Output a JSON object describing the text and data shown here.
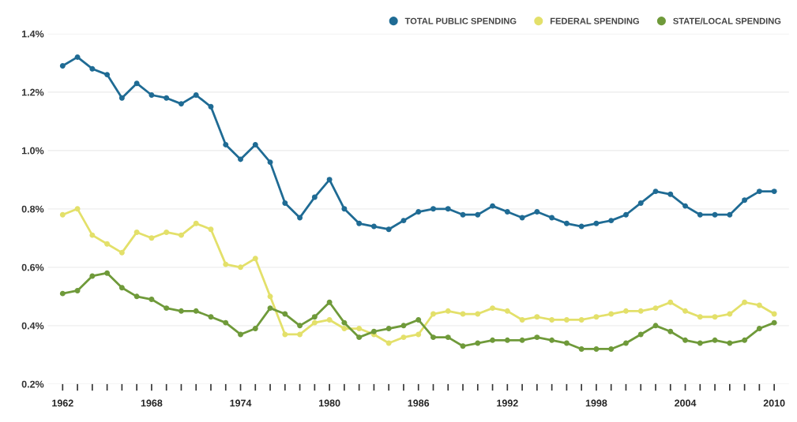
{
  "chart_data": {
    "type": "line",
    "x": [
      1962,
      1963,
      1964,
      1965,
      1966,
      1967,
      1968,
      1969,
      1970,
      1971,
      1972,
      1973,
      1974,
      1975,
      1976,
      1977,
      1978,
      1979,
      1980,
      1981,
      1982,
      1983,
      1984,
      1985,
      1986,
      1987,
      1988,
      1989,
      1990,
      1991,
      1992,
      1993,
      1994,
      1995,
      1996,
      1997,
      1998,
      1999,
      2000,
      2001,
      2002,
      2003,
      2004,
      2005,
      2006,
      2007,
      2008,
      2009,
      2010
    ],
    "series": [
      {
        "name": "TOTAL PUBLIC SPENDING",
        "color": "#1f6b94",
        "values": [
          1.29,
          1.32,
          1.28,
          1.26,
          1.18,
          1.23,
          1.19,
          1.18,
          1.16,
          1.19,
          1.15,
          1.02,
          0.97,
          1.02,
          0.96,
          0.82,
          0.77,
          0.84,
          0.9,
          0.8,
          0.75,
          0.74,
          0.73,
          0.76,
          0.79,
          0.8,
          0.8,
          0.78,
          0.78,
          0.81,
          0.79,
          0.77,
          0.79,
          0.77,
          0.75,
          0.74,
          0.75,
          0.76,
          0.78,
          0.82,
          0.86,
          0.85,
          0.81,
          0.78,
          0.78,
          0.78,
          0.83,
          0.86,
          0.86
        ]
      },
      {
        "name": "FEDERAL SPENDING",
        "color": "#e3e06a",
        "values": [
          0.78,
          0.8,
          0.71,
          0.68,
          0.65,
          0.72,
          0.7,
          0.72,
          0.71,
          0.75,
          0.73,
          0.61,
          0.6,
          0.63,
          0.5,
          0.37,
          0.37,
          0.41,
          0.42,
          0.39,
          0.39,
          0.37,
          0.34,
          0.36,
          0.37,
          0.44,
          0.45,
          0.44,
          0.44,
          0.46,
          0.45,
          0.42,
          0.43,
          0.42,
          0.42,
          0.42,
          0.43,
          0.44,
          0.45,
          0.45,
          0.46,
          0.48,
          0.45,
          0.43,
          0.43,
          0.44,
          0.48,
          0.47,
          0.44
        ]
      },
      {
        "name": "STATE/LOCAL SPENDING",
        "color": "#6f9a3a",
        "values": [
          0.51,
          0.52,
          0.57,
          0.58,
          0.53,
          0.5,
          0.49,
          0.46,
          0.45,
          0.45,
          0.43,
          0.41,
          0.37,
          0.39,
          0.46,
          0.44,
          0.4,
          0.43,
          0.48,
          0.41,
          0.36,
          0.38,
          0.39,
          0.4,
          0.42,
          0.36,
          0.36,
          0.33,
          0.34,
          0.35,
          0.35,
          0.35,
          0.36,
          0.35,
          0.34,
          0.32,
          0.32,
          0.32,
          0.34,
          0.37,
          0.4,
          0.38,
          0.35,
          0.34,
          0.35,
          0.34,
          0.35,
          0.39,
          0.41
        ]
      }
    ],
    "xlim": [
      1961,
      2011
    ],
    "xticks": [
      1962,
      {
        "value": 1963,
        "label": null
      },
      {
        "value": 1964,
        "label": null
      },
      {
        "value": 1965,
        "label": null
      },
      {
        "value": 1966,
        "label": null
      },
      {
        "value": 1967,
        "label": null
      },
      1968,
      {
        "value": 1969,
        "label": null
      },
      {
        "value": 1970,
        "label": null
      },
      {
        "value": 1971,
        "label": null
      },
      {
        "value": 1972,
        "label": null
      },
      {
        "value": 1973,
        "label": null
      },
      1974,
      {
        "value": 1975,
        "label": null
      },
      {
        "value": 1976,
        "label": null
      },
      {
        "value": 1977,
        "label": null
      },
      {
        "value": 1978,
        "label": null
      },
      {
        "value": 1979,
        "label": null
      },
      1980,
      {
        "value": 1981,
        "label": null
      },
      {
        "value": 1982,
        "label": null
      },
      {
        "value": 1983,
        "label": null
      },
      {
        "value": 1984,
        "label": null
      },
      {
        "value": 1985,
        "label": null
      },
      1986,
      {
        "value": 1987,
        "label": null
      },
      {
        "value": 1988,
        "label": null
      },
      {
        "value": 1989,
        "label": null
      },
      {
        "value": 1990,
        "label": null
      },
      {
        "value": 1991,
        "label": null
      },
      1992,
      {
        "value": 1993,
        "label": null
      },
      {
        "value": 1994,
        "label": null
      },
      {
        "value": 1995,
        "label": null
      },
      {
        "value": 1996,
        "label": null
      },
      {
        "value": 1997,
        "label": null
      },
      1998,
      {
        "value": 1999,
        "label": null
      },
      {
        "value": 2000,
        "label": null
      },
      {
        "value": 2001,
        "label": null
      },
      {
        "value": 2002,
        "label": null
      },
      {
        "value": 2003,
        "label": null
      },
      2004,
      {
        "value": 2005,
        "label": null
      },
      {
        "value": 2006,
        "label": null
      },
      {
        "value": 2007,
        "label": null
      },
      {
        "value": 2008,
        "label": null
      },
      {
        "value": 2009,
        "label": null
      },
      2010
    ],
    "ylim": [
      0.2,
      1.4
    ],
    "yticks": [
      {
        "value": 0.2,
        "label": "0.2%"
      },
      {
        "value": 0.4,
        "label": "0.4%"
      },
      {
        "value": 0.6,
        "label": "0.6%"
      },
      {
        "value": 0.8,
        "label": "0.8%"
      },
      {
        "value": 1.0,
        "label": "1.0%"
      },
      {
        "value": 1.2,
        "label": "1.2%"
      },
      {
        "value": 1.4,
        "label": "1.4%"
      }
    ],
    "grid": "y",
    "legend": "top right",
    "marker": "circle",
    "line_style": "solid"
  }
}
